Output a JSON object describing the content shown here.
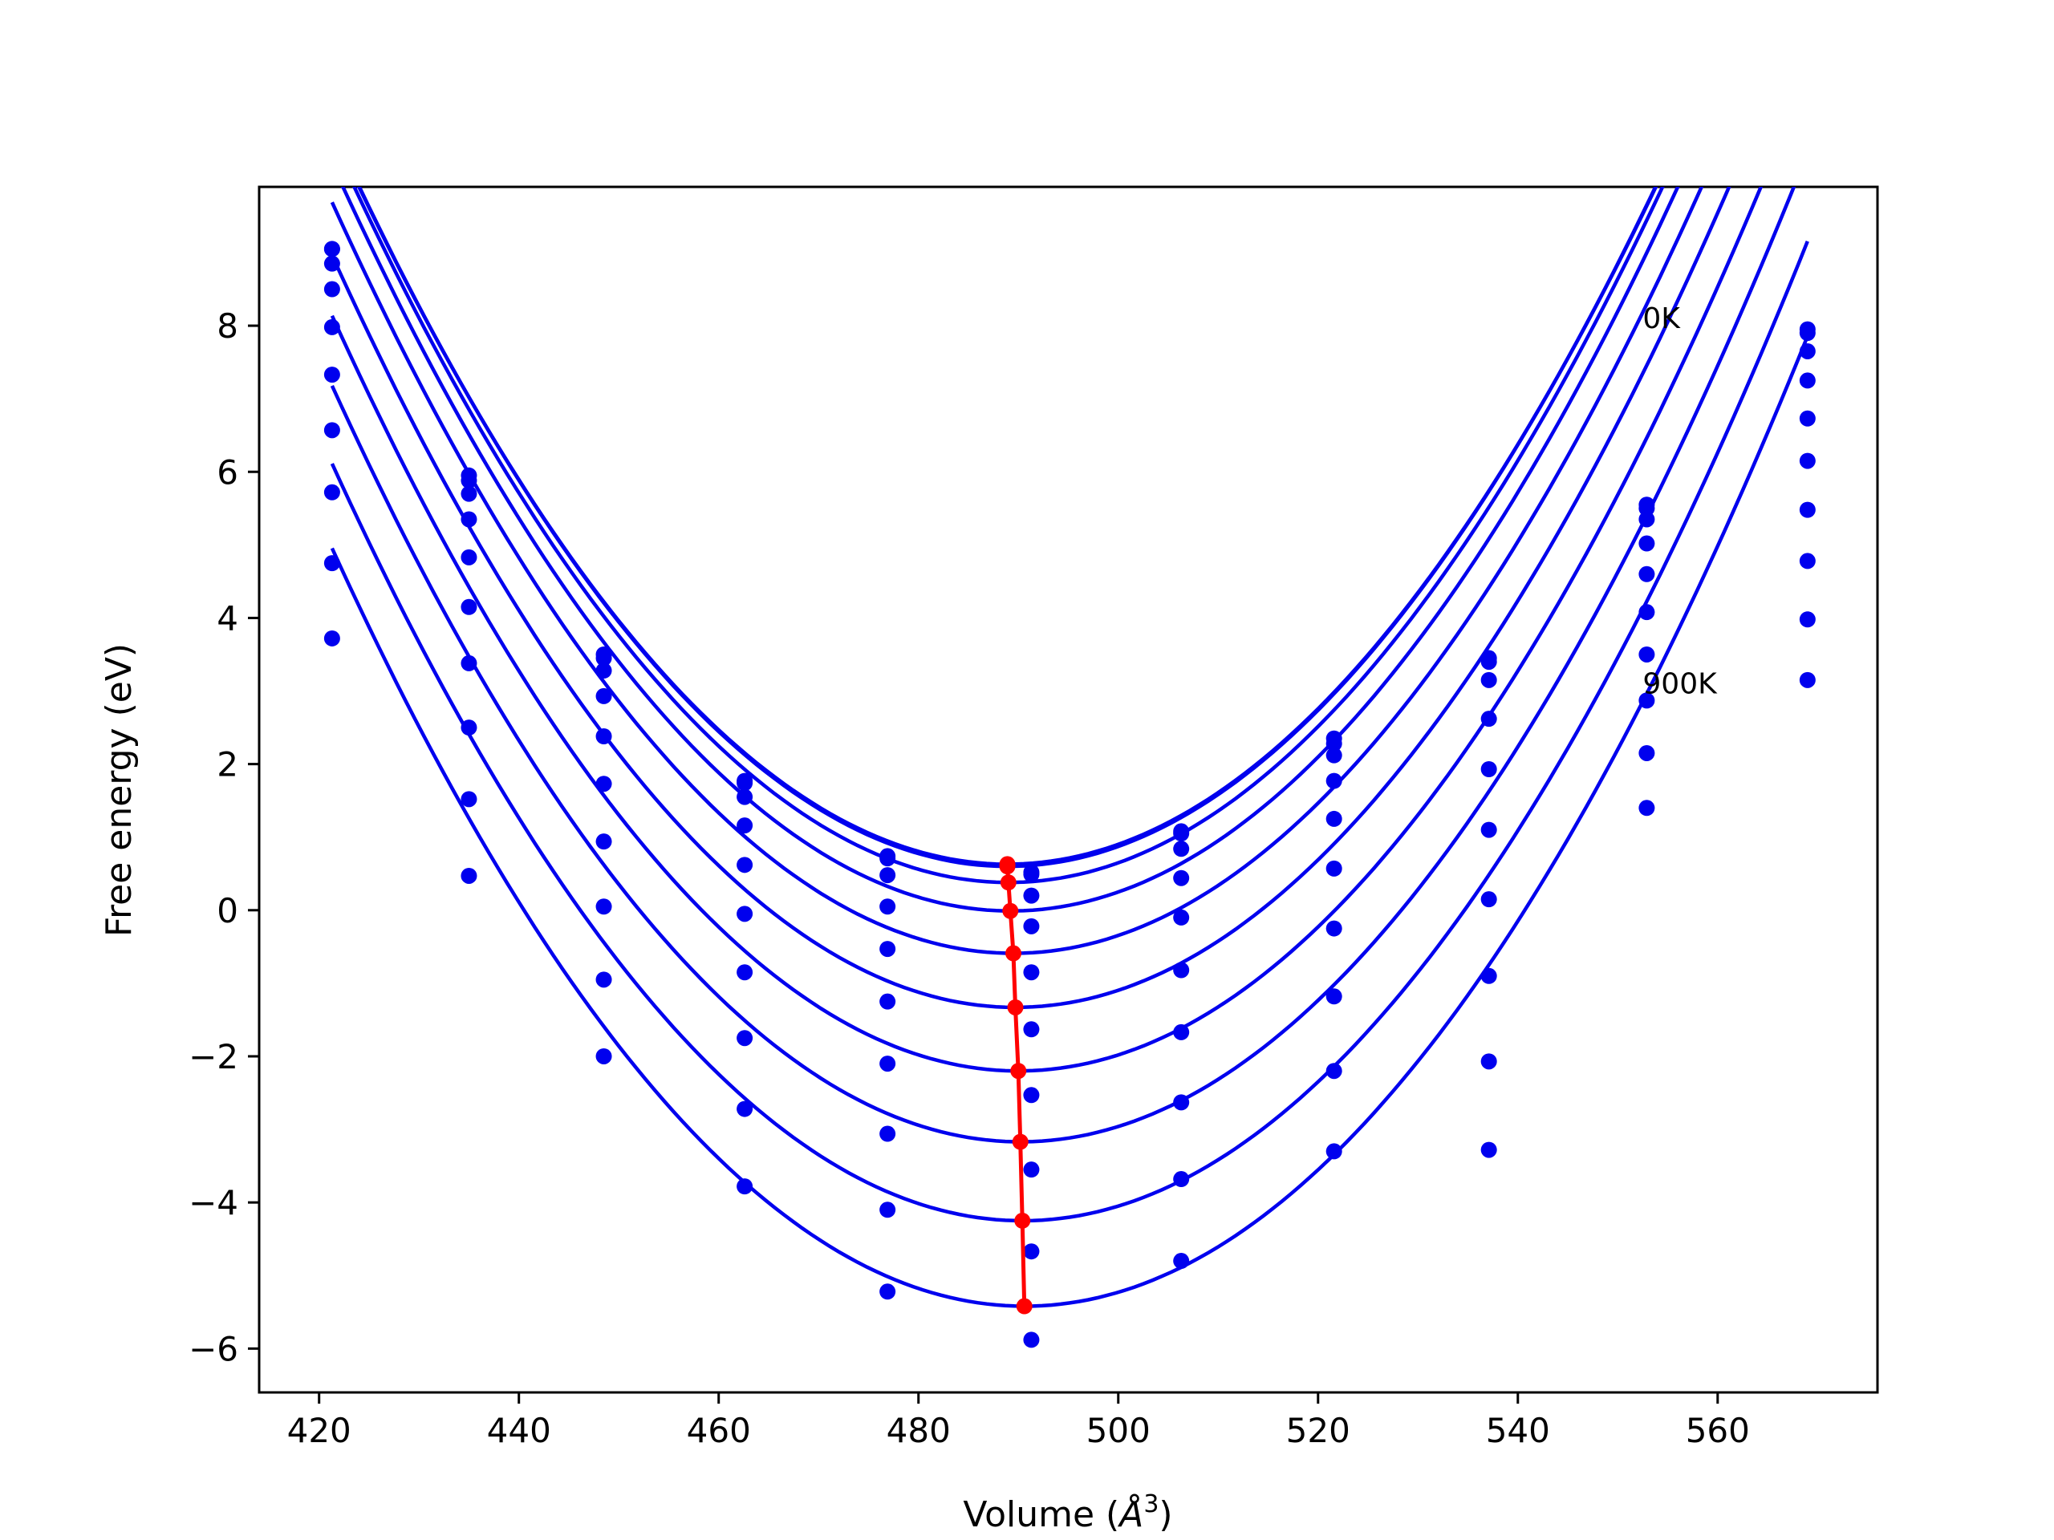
{
  "chart_data": {
    "type": "scatter",
    "xlabel": "Volume (",
    "xlabel_unit": "Å",
    "xlabel_sup": "3",
    "xlabel_close": ")",
    "ylabel": "Free energy (eV)",
    "xlim": [
      414,
      576
    ],
    "ylim": [
      -6.6,
      9.9
    ],
    "x_ticks": [
      420,
      440,
      460,
      480,
      500,
      520,
      540,
      560
    ],
    "y_ticks": [
      -6,
      -4,
      -2,
      0,
      2,
      4,
      6,
      8
    ],
    "y_tick_labels": [
      "−6",
      "−4",
      "−2",
      "0",
      "2",
      "4",
      "6",
      "8"
    ],
    "grid": false,
    "annotations": [
      {
        "text": "0K",
        "x": 552.5,
        "y": 8.1
      },
      {
        "text": "900K",
        "x": 552.5,
        "y": 3.1
      }
    ],
    "colors": {
      "curves": "#0000ee",
      "points": "#0000ee",
      "minima": "#ff0000"
    },
    "x": [
      421.3,
      435.0,
      448.5,
      462.6,
      476.9,
      491.3,
      506.3,
      521.6,
      537.1,
      552.9,
      569.0
    ],
    "series": [
      {
        "min_V": 488.9,
        "min_F": 0.63,
        "a": 0.0022,
        "values": [
          9.05,
          5.95,
          3.5,
          1.77,
          0.74,
          0.52,
          1.08,
          2.35,
          3.45,
          5.55,
          7.95
        ]
      },
      {
        "min_V": 488.9,
        "min_F": 0.6,
        "a": 0.00221,
        "values": [
          9.05,
          5.88,
          3.45,
          1.74,
          0.71,
          0.49,
          1.05,
          2.28,
          3.4,
          5.5,
          7.9
        ]
      },
      {
        "min_V": 489.0,
        "min_F": 0.38,
        "a": 0.00222,
        "values": [
          8.85,
          5.7,
          3.28,
          1.55,
          0.48,
          0.2,
          0.84,
          2.12,
          3.15,
          5.35,
          7.65
        ]
      },
      {
        "min_V": 489.2,
        "min_F": -0.01,
        "a": 0.00222,
        "values": [
          8.5,
          5.35,
          2.93,
          1.16,
          0.05,
          -0.22,
          0.44,
          1.77,
          2.62,
          5.02,
          7.25
        ]
      },
      {
        "min_V": 489.5,
        "min_F": -0.59,
        "a": 0.00221,
        "values": [
          7.98,
          4.83,
          2.38,
          0.62,
          -0.53,
          -0.85,
          -0.1,
          1.25,
          1.93,
          4.6,
          6.73
        ]
      },
      {
        "min_V": 489.7,
        "min_F": -1.33,
        "a": 0.0022,
        "values": [
          7.33,
          4.15,
          1.73,
          -0.05,
          -1.25,
          -1.63,
          -0.82,
          0.57,
          1.1,
          4.08,
          6.15
        ]
      },
      {
        "min_V": 490.0,
        "min_F": -2.2,
        "a": 0.00219,
        "values": [
          6.57,
          3.38,
          0.94,
          -0.85,
          -2.1,
          -2.53,
          -1.67,
          -0.25,
          0.15,
          3.5,
          5.48
        ]
      },
      {
        "min_V": 490.2,
        "min_F": -3.17,
        "a": 0.00218,
        "values": [
          5.72,
          2.5,
          0.05,
          -1.75,
          -3.06,
          -3.55,
          -2.63,
          -1.18,
          -0.9,
          2.87,
          4.78
        ]
      },
      {
        "min_V": 490.4,
        "min_F": -4.25,
        "a": 0.00217,
        "values": [
          4.75,
          1.52,
          -0.95,
          -2.72,
          -4.1,
          -4.67,
          -3.68,
          -2.2,
          -2.07,
          2.15,
          3.98
        ]
      },
      {
        "min_V": 490.6,
        "min_F": -5.42,
        "a": 0.00216,
        "values": [
          3.72,
          0.47,
          -2.0,
          -3.78,
          -5.22,
          -5.88,
          -4.8,
          -3.3,
          -3.28,
          1.4,
          3.15
        ]
      }
    ],
    "minima_line": {
      "x": [
        488.9,
        488.9,
        489.0,
        489.2,
        489.5,
        489.7,
        490.0,
        490.2,
        490.4,
        490.6
      ],
      "y": [
        0.63,
        0.6,
        0.38,
        -0.01,
        -0.59,
        -1.33,
        -2.2,
        -3.17,
        -4.25,
        -5.42
      ]
    }
  }
}
